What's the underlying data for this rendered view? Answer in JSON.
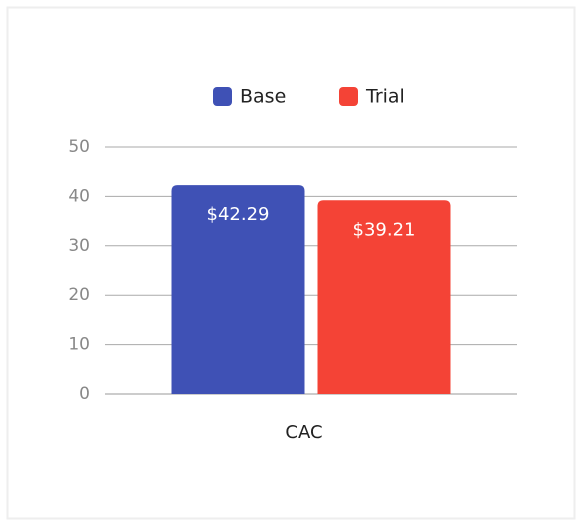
{
  "chart_data": {
    "type": "bar",
    "categories": [
      "CAC"
    ],
    "series": [
      {
        "name": "Base",
        "color": "#3f51b5",
        "values": [
          42.29
        ],
        "value_labels": [
          "$42.29"
        ]
      },
      {
        "name": "Trial",
        "color": "#f44336",
        "values": [
          39.21
        ],
        "value_labels": [
          "$39.21"
        ]
      }
    ],
    "ylim": [
      0,
      50
    ],
    "yticks": [
      0,
      10,
      20,
      30,
      40,
      50
    ],
    "grid": true,
    "legend": "top"
  }
}
